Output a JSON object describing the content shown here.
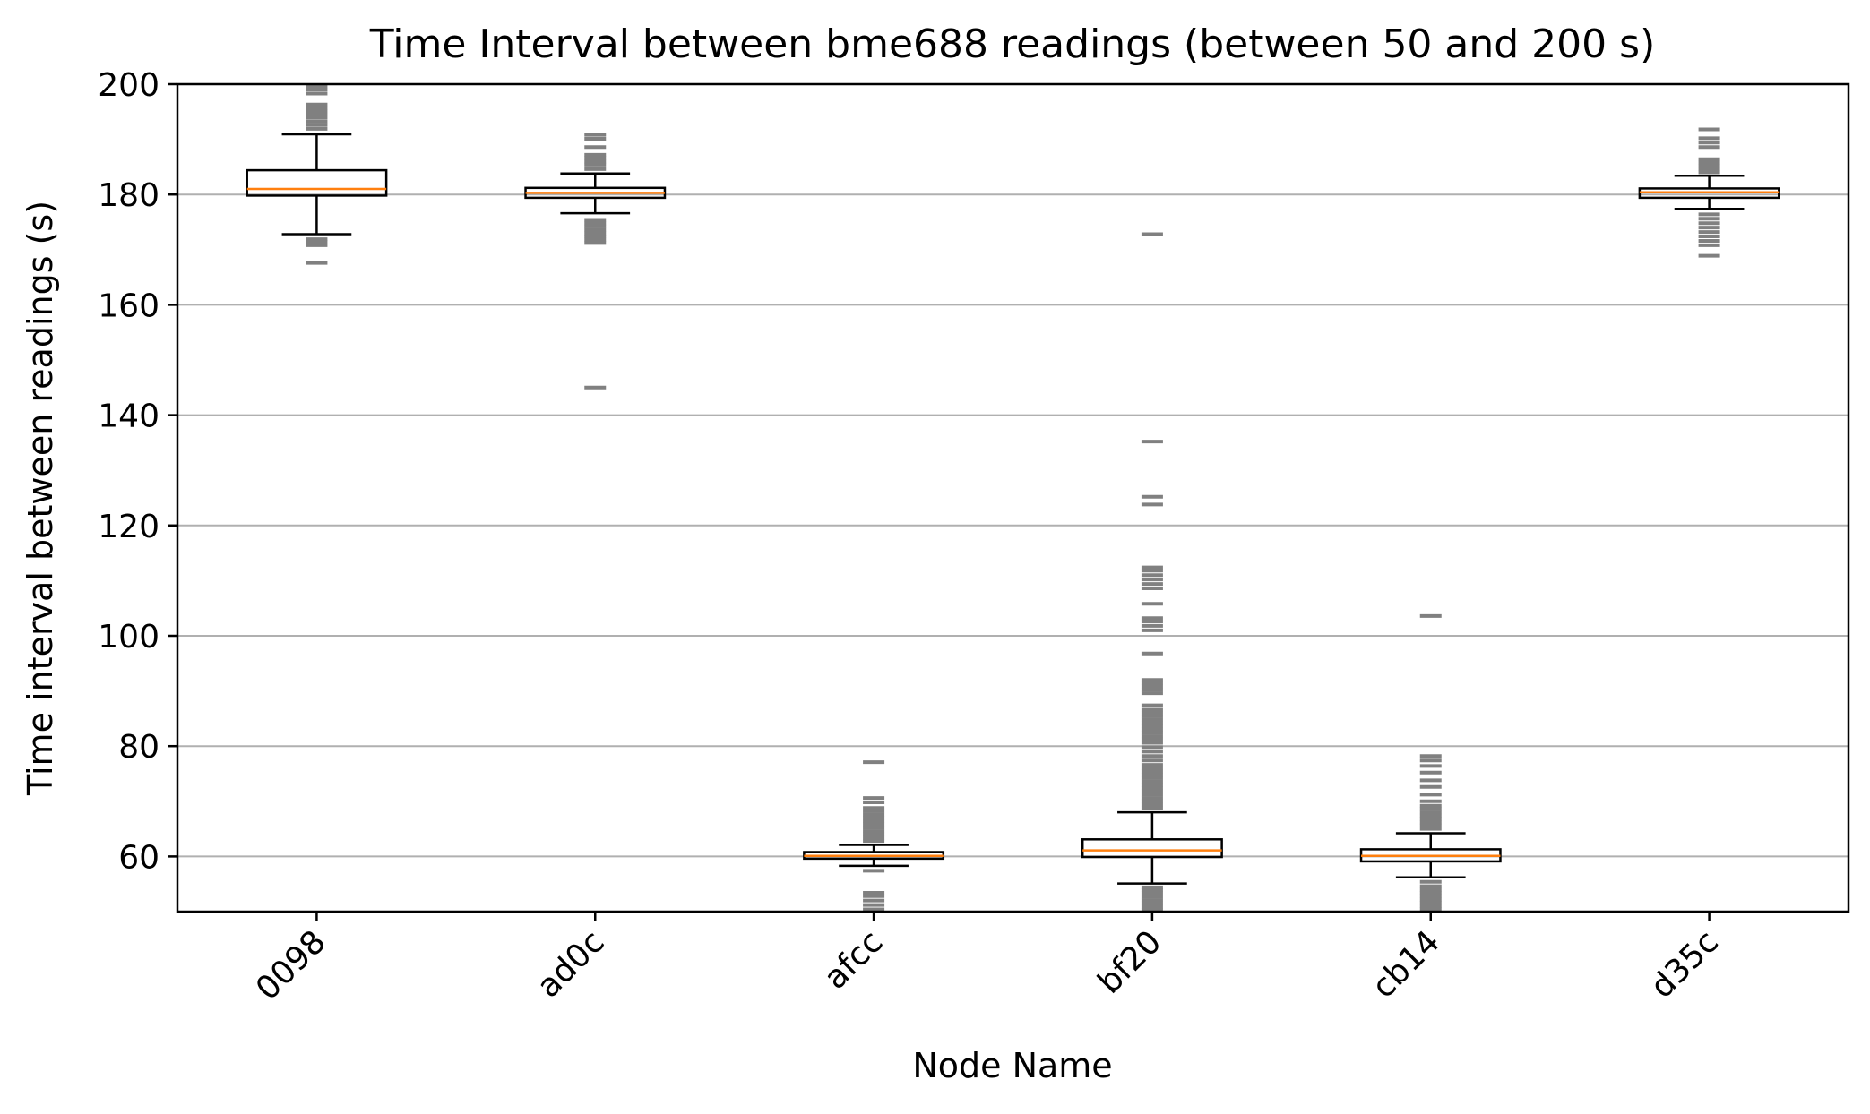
{
  "chart_data": {
    "type": "box",
    "title": "Time Interval between bme688 readings (between 50 and 200 s)",
    "xlabel": "Node Name",
    "ylabel": "Time interval between readings (s)",
    "ylim": [
      50,
      200
    ],
    "yticks": [
      60,
      80,
      100,
      120,
      140,
      160,
      180,
      200
    ],
    "grid": "y",
    "categories": [
      "0098",
      "ad0c",
      "afcc",
      "bf20",
      "cb14",
      "d35c"
    ],
    "boxes": [
      {
        "name": "0098",
        "whisker_low": 172.8,
        "q1": 179.8,
        "median": 181.0,
        "q3": 184.4,
        "whisker_high": 190.9,
        "outliers": [
          167.6,
          170.8,
          171.4,
          171.9,
          191.9,
          192.6,
          193.2,
          193.9,
          194.5,
          195.1,
          195.7,
          196.3,
          198.3,
          199.0,
          199.6
        ]
      },
      {
        "name": "ad0c",
        "whisker_low": 176.6,
        "q1": 179.4,
        "median": 180.3,
        "q3": 181.2,
        "whisker_high": 183.8,
        "outliers": [
          145.0,
          171.2,
          171.8,
          172.4,
          173.0,
          173.6,
          174.2,
          174.8,
          175.4,
          184.6,
          185.4,
          186.0,
          186.6,
          187.2,
          188.6,
          190.1,
          190.8
        ]
      },
      {
        "name": "afcc",
        "whisker_low": 58.3,
        "q1": 59.6,
        "median": 60.1,
        "q3": 60.8,
        "whisker_high": 62.1,
        "outliers": [
          50.4,
          51.2,
          52.0,
          52.8,
          53.4,
          57.4,
          62.8,
          63.4,
          64.0,
          64.6,
          65.2,
          65.8,
          66.4,
          67.0,
          67.6,
          68.2,
          68.8,
          69.8,
          70.6,
          77.1
        ]
      },
      {
        "name": "bf20",
        "whisker_low": 55.1,
        "q1": 59.9,
        "median": 61.1,
        "q3": 63.1,
        "whisker_high": 68.0,
        "outliers": [
          50.3,
          50.9,
          51.5,
          52.1,
          52.7,
          53.3,
          53.9,
          54.4,
          68.8,
          69.4,
          70.0,
          70.6,
          71.2,
          71.8,
          72.4,
          73.0,
          73.6,
          74.2,
          74.8,
          75.4,
          76.0,
          76.6,
          77.4,
          78.2,
          79.0,
          79.8,
          80.6,
          81.2,
          81.8,
          82.4,
          83.0,
          83.6,
          84.2,
          84.8,
          85.4,
          86.0,
          86.6,
          87.4,
          89.6,
          90.2,
          90.8,
          91.4,
          92.0,
          96.8,
          101.0,
          101.8,
          102.6,
          103.2,
          105.8,
          108.6,
          109.4,
          110.2,
          111.0,
          111.8,
          112.4,
          123.8,
          125.2,
          135.2,
          172.8
        ]
      },
      {
        "name": "cb14",
        "whisker_low": 56.2,
        "q1": 59.1,
        "median": 60.1,
        "q3": 61.3,
        "whisker_high": 64.2,
        "outliers": [
          50.4,
          51.0,
          51.6,
          52.2,
          52.8,
          53.4,
          54.0,
          54.6,
          55.4,
          65.0,
          65.6,
          66.2,
          66.8,
          67.4,
          68.0,
          68.6,
          69.2,
          70.0,
          71.2,
          72.6,
          73.8,
          75.2,
          76.4,
          77.4,
          78.2,
          103.6
        ]
      },
      {
        "name": "d35c",
        "whisker_low": 177.4,
        "q1": 179.4,
        "median": 180.4,
        "q3": 181.1,
        "whisker_high": 183.4,
        "outliers": [
          168.9,
          170.8,
          171.6,
          172.4,
          173.2,
          174.0,
          174.8,
          175.6,
          176.4,
          184.0,
          184.6,
          185.2,
          185.8,
          186.4,
          188.6,
          189.4,
          190.2,
          191.8
        ]
      }
    ],
    "colors": {
      "box_edge": "#000000",
      "median": "#ff7f0e",
      "outlier": "#808080",
      "grid": "#b0b0b0"
    }
  }
}
